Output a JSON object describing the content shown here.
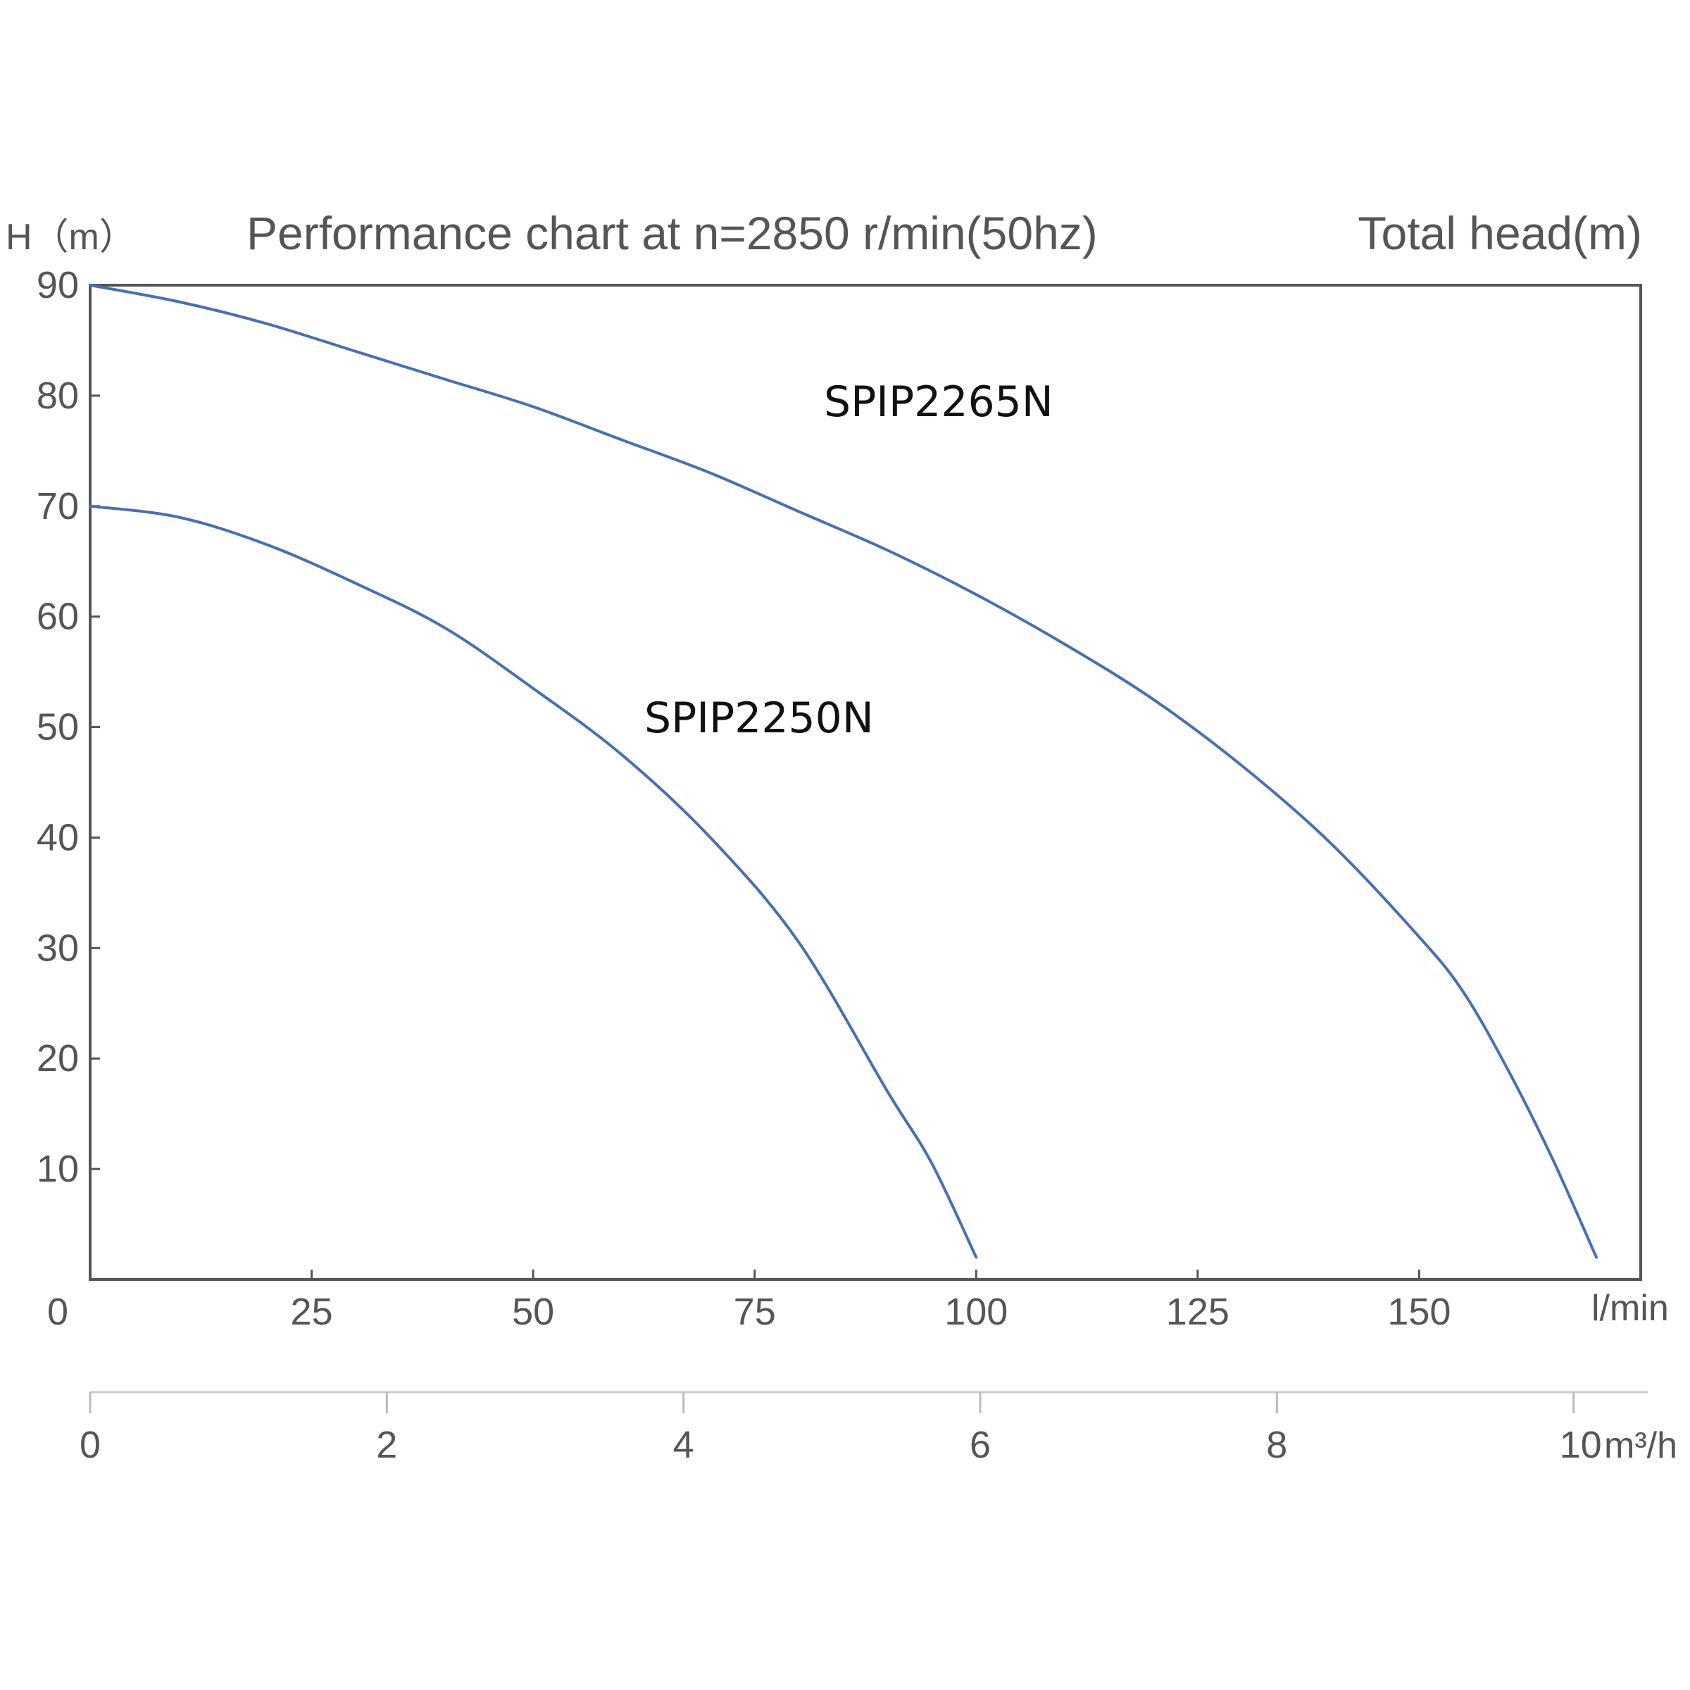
{
  "chart_data": {
    "type": "line",
    "title": "Performance chart at n=2850 r/min(50hz)",
    "right_title": "Total head(m)",
    "ylabel": "H（m）",
    "xlabel": "l/min",
    "x2label": "m³/h",
    "xlim": [
      0,
      175
    ],
    "ylim": [
      0,
      90
    ],
    "x2lim": [
      0,
      10.5
    ],
    "x_ticks": [
      "0",
      "25",
      "50",
      "75",
      "100",
      "125",
      "150"
    ],
    "x_tick_values": [
      0,
      25,
      50,
      75,
      100,
      125,
      150
    ],
    "y_ticks": [
      "90",
      "80",
      "70",
      "60",
      "50",
      "40",
      "30",
      "20",
      "10"
    ],
    "y_tick_values": [
      90,
      80,
      70,
      60,
      50,
      40,
      30,
      20,
      10
    ],
    "x2_ticks": [
      "0",
      "2",
      "4",
      "6",
      "8",
      "10"
    ],
    "x2_tick_values": [
      0,
      2,
      4,
      6,
      8,
      10
    ],
    "grid": false,
    "legend": "none",
    "line_color": "#4a6fb0",
    "series": [
      {
        "name": "SPIP2265N",
        "x": [
          0,
          10,
          20,
          30,
          40,
          50,
          60,
          70,
          80,
          90,
          100,
          110,
          120,
          130,
          140,
          150,
          155,
          160,
          165,
          170
        ],
        "y": [
          90,
          88.5,
          86.5,
          84,
          81.5,
          79,
          76,
          73,
          69.5,
          66,
          62,
          57.5,
          52.5,
          46.5,
          39.5,
          31,
          26,
          19,
          11,
          2
        ]
      },
      {
        "name": "SPIP2250N",
        "x": [
          0,
          10,
          20,
          30,
          40,
          50,
          60,
          70,
          80,
          90,
          95,
          100
        ],
        "y": [
          70,
          69,
          66.5,
          63,
          59,
          53.5,
          47.5,
          40,
          30.5,
          17,
          10.5,
          2
        ]
      }
    ]
  }
}
